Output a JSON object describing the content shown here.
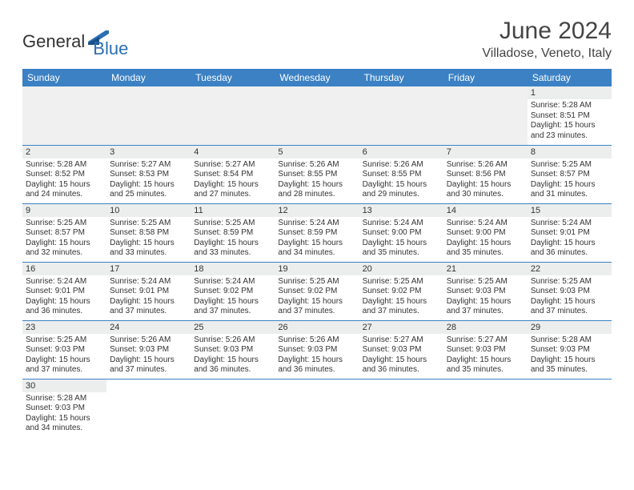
{
  "header": {
    "logo_general": "General",
    "logo_blue": "Blue",
    "title": "June 2024",
    "subtitle": "Villadose, Veneto, Italy"
  },
  "colors": {
    "header_bg": "#3b81c4",
    "daynum_bg": "#eceeee",
    "border": "#3b81c4",
    "logo_blue": "#2b6fb3"
  },
  "weekdays": [
    "Sunday",
    "Monday",
    "Tuesday",
    "Wednesday",
    "Thursday",
    "Friday",
    "Saturday"
  ],
  "weeks": [
    [
      null,
      null,
      null,
      null,
      null,
      null,
      {
        "d": "1",
        "sr": "Sunrise: 5:28 AM",
        "ss": "Sunset: 8:51 PM",
        "dl": "Daylight: 15 hours and 23 minutes."
      }
    ],
    [
      {
        "d": "2",
        "sr": "Sunrise: 5:28 AM",
        "ss": "Sunset: 8:52 PM",
        "dl": "Daylight: 15 hours and 24 minutes."
      },
      {
        "d": "3",
        "sr": "Sunrise: 5:27 AM",
        "ss": "Sunset: 8:53 PM",
        "dl": "Daylight: 15 hours and 25 minutes."
      },
      {
        "d": "4",
        "sr": "Sunrise: 5:27 AM",
        "ss": "Sunset: 8:54 PM",
        "dl": "Daylight: 15 hours and 27 minutes."
      },
      {
        "d": "5",
        "sr": "Sunrise: 5:26 AM",
        "ss": "Sunset: 8:55 PM",
        "dl": "Daylight: 15 hours and 28 minutes."
      },
      {
        "d": "6",
        "sr": "Sunrise: 5:26 AM",
        "ss": "Sunset: 8:55 PM",
        "dl": "Daylight: 15 hours and 29 minutes."
      },
      {
        "d": "7",
        "sr": "Sunrise: 5:26 AM",
        "ss": "Sunset: 8:56 PM",
        "dl": "Daylight: 15 hours and 30 minutes."
      },
      {
        "d": "8",
        "sr": "Sunrise: 5:25 AM",
        "ss": "Sunset: 8:57 PM",
        "dl": "Daylight: 15 hours and 31 minutes."
      }
    ],
    [
      {
        "d": "9",
        "sr": "Sunrise: 5:25 AM",
        "ss": "Sunset: 8:57 PM",
        "dl": "Daylight: 15 hours and 32 minutes."
      },
      {
        "d": "10",
        "sr": "Sunrise: 5:25 AM",
        "ss": "Sunset: 8:58 PM",
        "dl": "Daylight: 15 hours and 33 minutes."
      },
      {
        "d": "11",
        "sr": "Sunrise: 5:25 AM",
        "ss": "Sunset: 8:59 PM",
        "dl": "Daylight: 15 hours and 33 minutes."
      },
      {
        "d": "12",
        "sr": "Sunrise: 5:24 AM",
        "ss": "Sunset: 8:59 PM",
        "dl": "Daylight: 15 hours and 34 minutes."
      },
      {
        "d": "13",
        "sr": "Sunrise: 5:24 AM",
        "ss": "Sunset: 9:00 PM",
        "dl": "Daylight: 15 hours and 35 minutes."
      },
      {
        "d": "14",
        "sr": "Sunrise: 5:24 AM",
        "ss": "Sunset: 9:00 PM",
        "dl": "Daylight: 15 hours and 35 minutes."
      },
      {
        "d": "15",
        "sr": "Sunrise: 5:24 AM",
        "ss": "Sunset: 9:01 PM",
        "dl": "Daylight: 15 hours and 36 minutes."
      }
    ],
    [
      {
        "d": "16",
        "sr": "Sunrise: 5:24 AM",
        "ss": "Sunset: 9:01 PM",
        "dl": "Daylight: 15 hours and 36 minutes."
      },
      {
        "d": "17",
        "sr": "Sunrise: 5:24 AM",
        "ss": "Sunset: 9:01 PM",
        "dl": "Daylight: 15 hours and 37 minutes."
      },
      {
        "d": "18",
        "sr": "Sunrise: 5:24 AM",
        "ss": "Sunset: 9:02 PM",
        "dl": "Daylight: 15 hours and 37 minutes."
      },
      {
        "d": "19",
        "sr": "Sunrise: 5:25 AM",
        "ss": "Sunset: 9:02 PM",
        "dl": "Daylight: 15 hours and 37 minutes."
      },
      {
        "d": "20",
        "sr": "Sunrise: 5:25 AM",
        "ss": "Sunset: 9:02 PM",
        "dl": "Daylight: 15 hours and 37 minutes."
      },
      {
        "d": "21",
        "sr": "Sunrise: 5:25 AM",
        "ss": "Sunset: 9:03 PM",
        "dl": "Daylight: 15 hours and 37 minutes."
      },
      {
        "d": "22",
        "sr": "Sunrise: 5:25 AM",
        "ss": "Sunset: 9:03 PM",
        "dl": "Daylight: 15 hours and 37 minutes."
      }
    ],
    [
      {
        "d": "23",
        "sr": "Sunrise: 5:25 AM",
        "ss": "Sunset: 9:03 PM",
        "dl": "Daylight: 15 hours and 37 minutes."
      },
      {
        "d": "24",
        "sr": "Sunrise: 5:26 AM",
        "ss": "Sunset: 9:03 PM",
        "dl": "Daylight: 15 hours and 37 minutes."
      },
      {
        "d": "25",
        "sr": "Sunrise: 5:26 AM",
        "ss": "Sunset: 9:03 PM",
        "dl": "Daylight: 15 hours and 36 minutes."
      },
      {
        "d": "26",
        "sr": "Sunrise: 5:26 AM",
        "ss": "Sunset: 9:03 PM",
        "dl": "Daylight: 15 hours and 36 minutes."
      },
      {
        "d": "27",
        "sr": "Sunrise: 5:27 AM",
        "ss": "Sunset: 9:03 PM",
        "dl": "Daylight: 15 hours and 36 minutes."
      },
      {
        "d": "28",
        "sr": "Sunrise: 5:27 AM",
        "ss": "Sunset: 9:03 PM",
        "dl": "Daylight: 15 hours and 35 minutes."
      },
      {
        "d": "29",
        "sr": "Sunrise: 5:28 AM",
        "ss": "Sunset: 9:03 PM",
        "dl": "Daylight: 15 hours and 35 minutes."
      }
    ],
    [
      {
        "d": "30",
        "sr": "Sunrise: 5:28 AM",
        "ss": "Sunset: 9:03 PM",
        "dl": "Daylight: 15 hours and 34 minutes."
      },
      null,
      null,
      null,
      null,
      null,
      null
    ]
  ]
}
